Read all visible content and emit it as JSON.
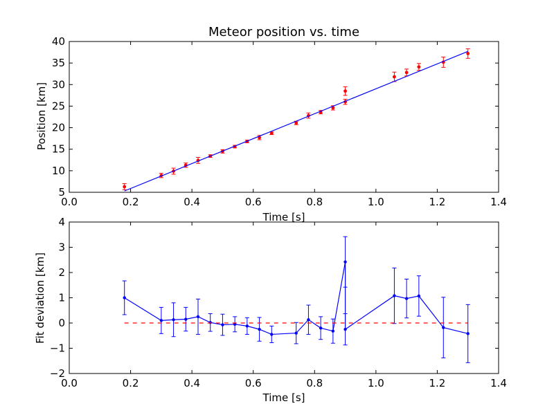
{
  "chart_data": [
    {
      "type": "scatter",
      "title": "Meteor position vs. time",
      "xlabel": "Time [s]",
      "ylabel": "Position [km]",
      "xlim": [
        0.0,
        1.4
      ],
      "ylim": [
        5,
        40
      ],
      "xticks": [
        "0.0",
        "0.2",
        "0.4",
        "0.6",
        "0.8",
        "1.0",
        "1.2",
        "1.4"
      ],
      "yticks": [
        "5",
        "10",
        "15",
        "20",
        "25",
        "30",
        "35",
        "40"
      ],
      "grid": false,
      "colors": {
        "points": "#ff0000",
        "fit": "#0000ff"
      },
      "series": [
        {
          "kind": "errorbar-points",
          "x": [
            0.18,
            0.3,
            0.34,
            0.38,
            0.42,
            0.46,
            0.5,
            0.54,
            0.58,
            0.62,
            0.66,
            0.74,
            0.78,
            0.82,
            0.86,
            0.9,
            0.9,
            1.06,
            1.1,
            1.14,
            1.22,
            1.3
          ],
          "y": [
            6.3,
            8.9,
            9.9,
            11.3,
            12.4,
            13.4,
            14.5,
            15.6,
            16.8,
            17.7,
            18.7,
            21.1,
            22.8,
            23.6,
            24.6,
            26.0,
            28.5,
            31.8,
            32.8,
            34.1,
            35.2,
            37.2
          ],
          "yerr": [
            0.7,
            0.5,
            0.7,
            0.5,
            0.7,
            0.3,
            0.4,
            0.3,
            0.3,
            0.5,
            0.3,
            0.4,
            0.6,
            0.4,
            0.5,
            0.6,
            1.0,
            1.1,
            0.8,
            0.8,
            1.2,
            1.1
          ]
        },
        {
          "kind": "fit-line",
          "x": [
            0.18,
            1.3
          ],
          "y": [
            5.3,
            37.7
          ]
        }
      ]
    },
    {
      "type": "line",
      "title": "",
      "xlabel": "Time [s]",
      "ylabel": "Fit deviation [km]",
      "xlim": [
        0.0,
        1.4
      ],
      "ylim": [
        -2,
        4
      ],
      "xticks": [
        "0.0",
        "0.2",
        "0.4",
        "0.6",
        "0.8",
        "1.0",
        "1.2",
        "1.4"
      ],
      "yticks": [
        "−2",
        "−1",
        "0",
        "1",
        "2",
        "3",
        "4"
      ],
      "grid": false,
      "colors": {
        "deviation": "#0000ff",
        "zero": "#ff0000"
      },
      "series": [
        {
          "kind": "errorbar-line",
          "x": [
            0.18,
            0.3,
            0.34,
            0.38,
            0.42,
            0.46,
            0.5,
            0.54,
            0.58,
            0.62,
            0.66,
            0.74,
            0.78,
            0.82,
            0.86,
            0.9,
            0.9,
            1.06,
            1.1,
            1.14,
            1.22,
            1.3
          ],
          "y": [
            1.0,
            0.1,
            0.13,
            0.15,
            0.25,
            0.02,
            -0.07,
            -0.05,
            -0.12,
            -0.25,
            -0.45,
            -0.4,
            0.13,
            -0.2,
            -0.32,
            2.42,
            -0.25,
            1.08,
            0.97,
            1.07,
            -0.18,
            -0.42
          ],
          "yerr": [
            0.67,
            0.52,
            0.67,
            0.47,
            0.7,
            0.35,
            0.42,
            0.3,
            0.33,
            0.47,
            0.33,
            0.42,
            0.58,
            0.45,
            0.48,
            1.0,
            0.62,
            1.1,
            0.77,
            0.8,
            1.2,
            1.15
          ]
        },
        {
          "kind": "zero-line-dashed",
          "x": [
            0.18,
            1.3
          ],
          "y": [
            0,
            0
          ]
        }
      ]
    }
  ]
}
